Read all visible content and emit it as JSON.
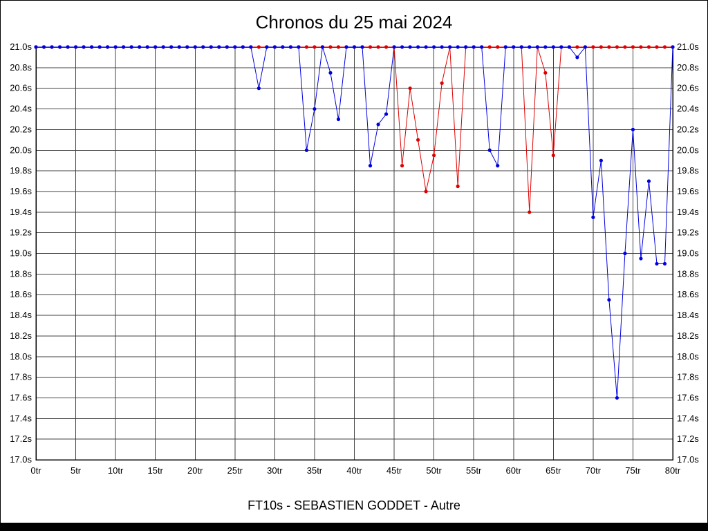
{
  "title": "Chronos du 25 mai 2024",
  "caption": "FT10s - SEBASTIEN GODDET - Autre",
  "chart_data": {
    "type": "line",
    "title": "Chronos du 25 mai 2024",
    "xlabel": "",
    "ylabel": "",
    "x_unit": "tr",
    "y_unit": "s",
    "xlim": [
      0,
      80
    ],
    "ylim": [
      17.0,
      21.0
    ],
    "grid": true,
    "grid_color": "#404040",
    "x_step": 1,
    "x_ticks": [
      "0tr",
      "5tr",
      "10tr",
      "15tr",
      "20tr",
      "25tr",
      "30tr",
      "35tr",
      "40tr",
      "45tr",
      "50tr",
      "55tr",
      "60tr",
      "65tr",
      "70tr",
      "75tr",
      "80tr"
    ],
    "y_ticks": [
      "17.0s",
      "17.2s",
      "17.4s",
      "17.6s",
      "17.8s",
      "18.0s",
      "18.2s",
      "18.4s",
      "18.6s",
      "18.8s",
      "19.0s",
      "19.2s",
      "19.4s",
      "19.6s",
      "19.8s",
      "20.0s",
      "20.2s",
      "20.4s",
      "20.6s",
      "20.8s",
      "21.0s"
    ],
    "series": [
      {
        "name": "red-series",
        "color": "#dd0000",
        "values": [
          21.0,
          21.0,
          21.0,
          21.0,
          21.0,
          21.0,
          21.0,
          21.0,
          21.0,
          21.0,
          21.0,
          21.0,
          21.0,
          21.0,
          21.0,
          21.0,
          21.0,
          21.0,
          21.0,
          21.0,
          21.0,
          21.0,
          21.0,
          21.0,
          21.0,
          21.0,
          21.0,
          21.0,
          21.0,
          21.0,
          21.0,
          21.0,
          21.0,
          21.0,
          21.0,
          21.0,
          21.0,
          21.0,
          21.0,
          21.0,
          21.0,
          21.0,
          21.0,
          21.0,
          21.0,
          21.0,
          19.85,
          20.6,
          20.1,
          19.6,
          19.95,
          20.65,
          21.0,
          19.65,
          21.0,
          21.0,
          21.0,
          21.0,
          21.0,
          21.0,
          21.0,
          21.0,
          19.4,
          21.0,
          20.75,
          19.95,
          21.0,
          21.0,
          21.0,
          21.0,
          21.0,
          21.0,
          21.0,
          21.0,
          21.0,
          21.0,
          21.0,
          21.0,
          21.0,
          21.0,
          21.0
        ]
      },
      {
        "name": "blue-series",
        "color": "#0000dd",
        "values": [
          21.0,
          21.0,
          21.0,
          21.0,
          21.0,
          21.0,
          21.0,
          21.0,
          21.0,
          21.0,
          21.0,
          21.0,
          21.0,
          21.0,
          21.0,
          21.0,
          21.0,
          21.0,
          21.0,
          21.0,
          21.0,
          21.0,
          21.0,
          21.0,
          21.0,
          21.0,
          21.0,
          21.0,
          20.6,
          21.0,
          21.0,
          21.0,
          21.0,
          21.0,
          20.0,
          20.4,
          21.0,
          20.75,
          20.3,
          21.0,
          21.0,
          21.0,
          19.85,
          20.25,
          20.35,
          21.0,
          21.0,
          21.0,
          21.0,
          21.0,
          21.0,
          21.0,
          21.0,
          21.0,
          21.0,
          21.0,
          21.0,
          20.0,
          19.85,
          21.0,
          21.0,
          21.0,
          21.0,
          21.0,
          21.0,
          21.0,
          21.0,
          21.0,
          20.9,
          21.0,
          19.35,
          19.9,
          18.55,
          17.6,
          19.0,
          20.2,
          18.95,
          19.7,
          18.9,
          18.9,
          21.0
        ]
      }
    ]
  }
}
